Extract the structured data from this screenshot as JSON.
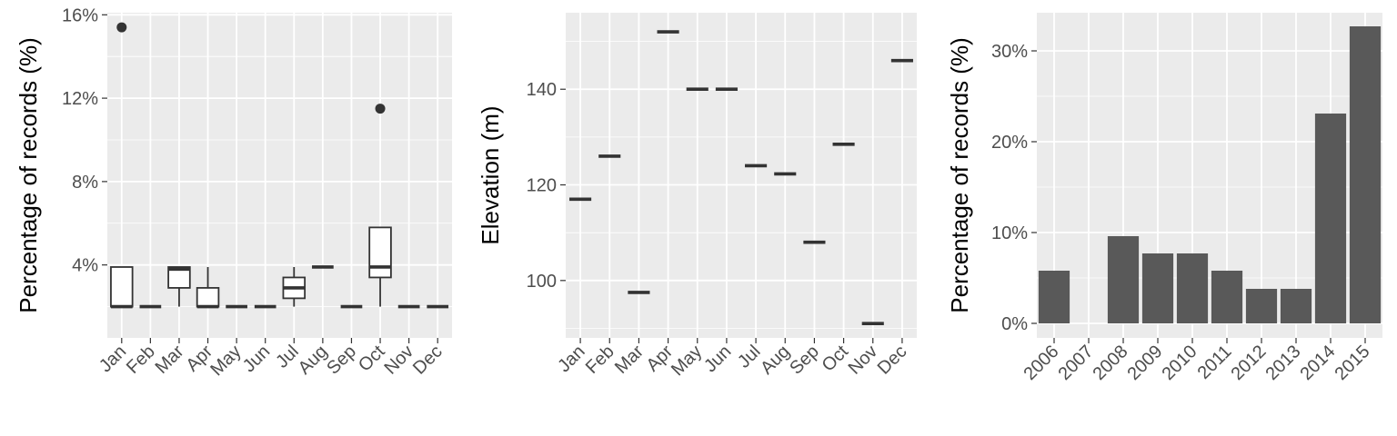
{
  "colors": {
    "panel_bg": "#ebebeb",
    "grid": "#ffffff",
    "ink": "#333333",
    "bar": "#595959",
    "tick_text": "#4d4d4d"
  },
  "chart_data": [
    {
      "type": "box",
      "ylabel": "Percentage of records (%)",
      "categories": [
        "Jan",
        "Feb",
        "Mar",
        "Apr",
        "May",
        "Jun",
        "Jul",
        "Aug",
        "Sep",
        "Oct",
        "Nov",
        "Dec"
      ],
      "ylim": [
        0.5,
        16.1
      ],
      "yticks": [
        4,
        8,
        12,
        16
      ],
      "ytick_labels": [
        "4%",
        "8%",
        "12%",
        "16%"
      ],
      "boxes": [
        {
          "min": 2.0,
          "q1": 2.0,
          "median": 2.0,
          "q3": 3.9,
          "max": 3.9,
          "outliers": [
            15.4
          ]
        },
        {
          "min": 2.0,
          "q1": 2.0,
          "median": 2.0,
          "q3": 2.0,
          "max": 2.0,
          "outliers": []
        },
        {
          "min": 2.0,
          "q1": 2.9,
          "median": 3.8,
          "q3": 3.9,
          "max": 3.9,
          "outliers": []
        },
        {
          "min": 2.0,
          "q1": 2.0,
          "median": 2.0,
          "q3": 2.9,
          "max": 3.9,
          "outliers": []
        },
        {
          "min": 2.0,
          "q1": 2.0,
          "median": 2.0,
          "q3": 2.0,
          "max": 2.0,
          "outliers": []
        },
        {
          "min": 2.0,
          "q1": 2.0,
          "median": 2.0,
          "q3": 2.0,
          "max": 2.0,
          "outliers": []
        },
        {
          "min": 2.0,
          "q1": 2.4,
          "median": 2.9,
          "q3": 3.4,
          "max": 3.9,
          "outliers": []
        },
        {
          "min": 3.9,
          "q1": 3.9,
          "median": 3.9,
          "q3": 3.9,
          "max": 3.9,
          "outliers": []
        },
        {
          "min": 2.0,
          "q1": 2.0,
          "median": 2.0,
          "q3": 2.0,
          "max": 2.0,
          "outliers": []
        },
        {
          "min": 2.0,
          "q1": 3.4,
          "median": 3.9,
          "q3": 5.8,
          "max": 5.8,
          "outliers": [
            11.5
          ]
        },
        {
          "min": 2.0,
          "q1": 2.0,
          "median": 2.0,
          "q3": 2.0,
          "max": 2.0,
          "outliers": []
        },
        {
          "min": 2.0,
          "q1": 2.0,
          "median": 2.0,
          "q3": 2.0,
          "max": 2.0,
          "outliers": []
        }
      ]
    },
    {
      "type": "box",
      "ylabel": "Elevation (m)",
      "categories": [
        "Jan",
        "Feb",
        "Mar",
        "Apr",
        "May",
        "Jun",
        "Jul",
        "Aug",
        "Sep",
        "Oct",
        "Nov",
        "Dec"
      ],
      "ylim": [
        88,
        156
      ],
      "yticks": [
        100,
        120,
        140
      ],
      "ytick_labels": [
        "100",
        "120",
        "140"
      ],
      "values": [
        117,
        126,
        97.5,
        152,
        140,
        140,
        124,
        122.3,
        108,
        128.5,
        91,
        146
      ]
    },
    {
      "type": "bar",
      "ylabel": "Percentage of records (%)",
      "categories": [
        "2006",
        "2007",
        "2008",
        "2009",
        "2010",
        "2011",
        "2012",
        "2013",
        "2014",
        "2015"
      ],
      "values": [
        5.8,
        0,
        9.6,
        7.7,
        7.7,
        5.8,
        3.8,
        3.8,
        23.1,
        32.7
      ],
      "ylim": [
        -1.6,
        34.2
      ],
      "yticks": [
        0,
        10,
        20,
        30
      ],
      "ytick_labels": [
        "0%",
        "10%",
        "20%",
        "30%"
      ]
    }
  ]
}
